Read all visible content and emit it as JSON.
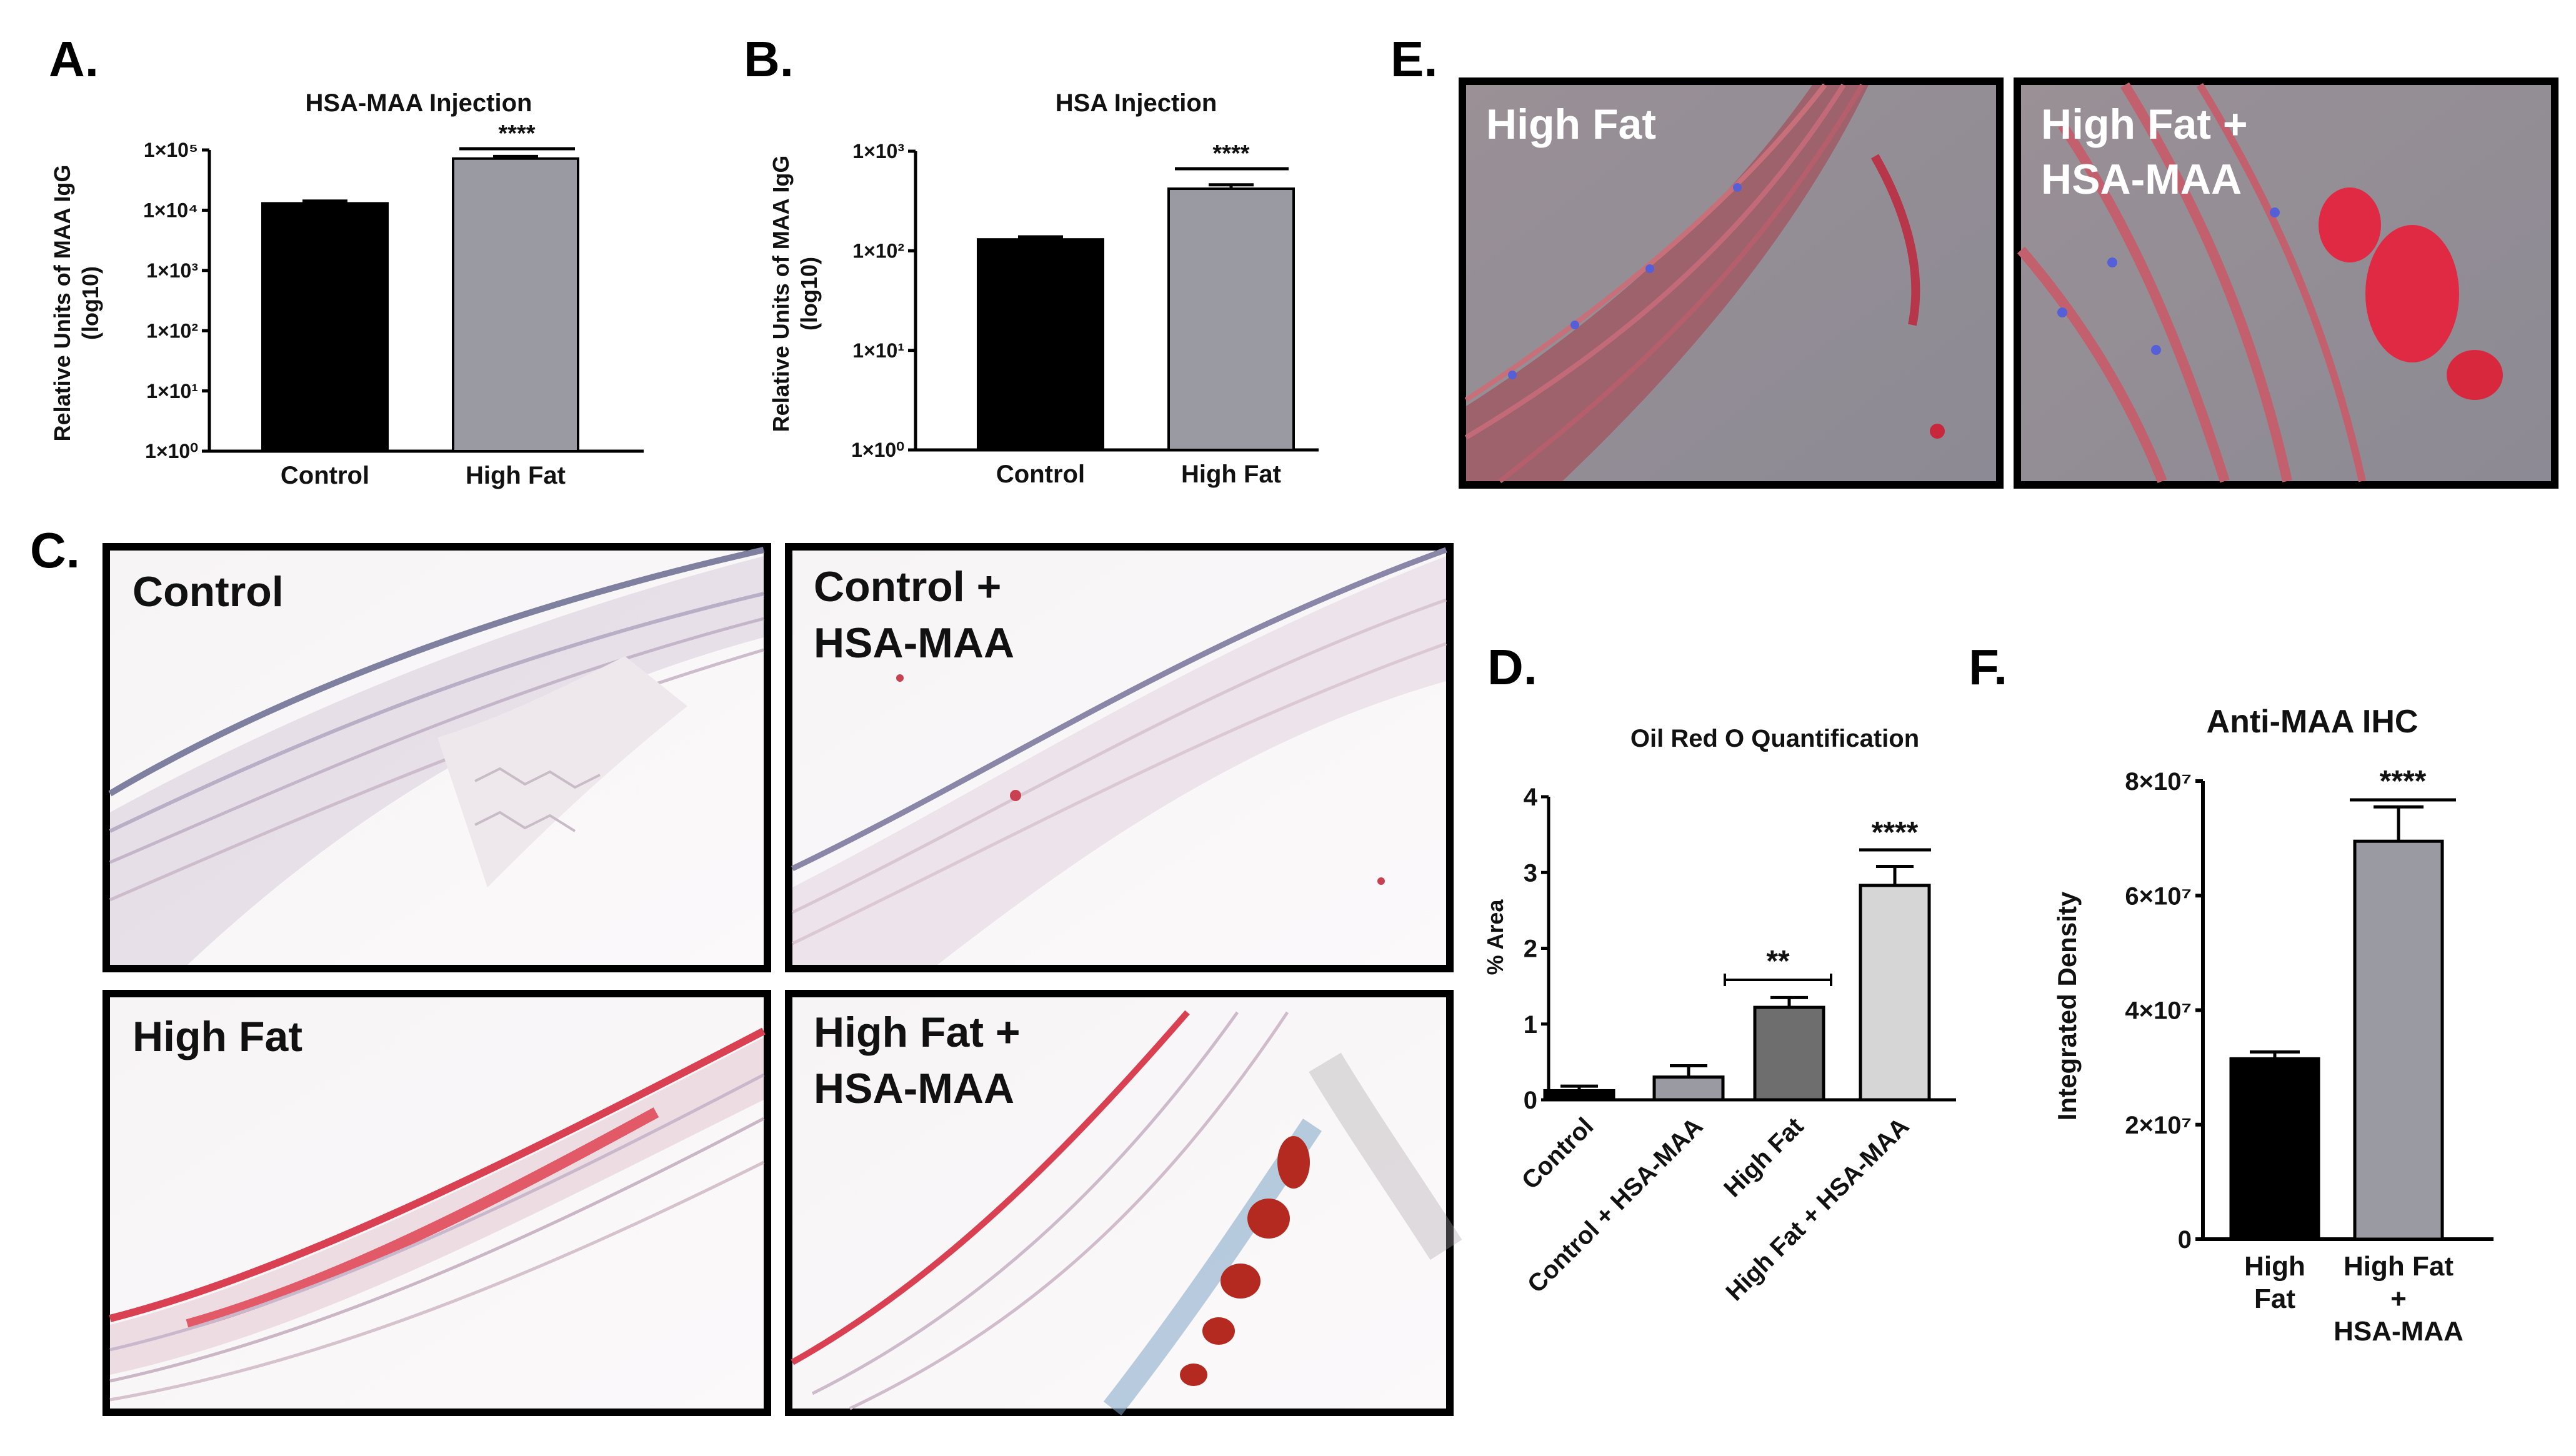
{
  "panel_labels": {
    "a": "A.",
    "b": "B.",
    "c": "C.",
    "d": "D.",
    "e": "E.",
    "f": "F."
  },
  "image_labels": {
    "c1": "Control",
    "c2_l1": "Control +",
    "c2_l2": "HSA-MAA",
    "c3": "High Fat",
    "c4_l1": "High Fat +",
    "c4_l2": "HSA-MAA",
    "e1": "High Fat",
    "e2_l1": "High Fat +",
    "e2_l2": "HSA-MAA"
  },
  "colors": {
    "black_bar": "#000000",
    "gray_bar": "#9a9aa2",
    "dark_gray": "#6e6e6e",
    "light_gray": "#d6d6d6",
    "stain_red": "#d42a3a",
    "nuclei_blue": "#5560d8"
  },
  "chart_data": [
    {
      "id": "A",
      "type": "bar",
      "title": "HSA-MAA Injection",
      "ylabel_l1": "Relative Units of MAA IgG",
      "ylabel_l2": "(log10)",
      "scale": "log10",
      "ylim": [
        1,
        100000
      ],
      "yticks": [
        "1×10⁰",
        "1×10¹",
        "1×10²",
        "1×10³",
        "1×10⁴",
        "1×10⁵"
      ],
      "categories": [
        "Control",
        "High Fat"
      ],
      "values": [
        13000,
        72000
      ],
      "errors": [
        1200,
        6000
      ],
      "significance": "****"
    },
    {
      "id": "B",
      "type": "bar",
      "title": "HSA Injection",
      "ylabel_l1": "Relative Units of MAA IgG",
      "ylabel_l2": "(log10)",
      "scale": "log10",
      "ylim": [
        1,
        1000
      ],
      "yticks": [
        "1×10⁰",
        "1×10¹",
        "1×10²",
        "1×10³"
      ],
      "categories": [
        "Control",
        "High Fat"
      ],
      "values": [
        130,
        420
      ],
      "errors": [
        8,
        40
      ],
      "significance": "****"
    },
    {
      "id": "D",
      "type": "bar",
      "title": "Oil Red O Quantification",
      "ylabel": "% Area",
      "ylim": [
        0,
        4
      ],
      "yticks": [
        "0",
        "1",
        "2",
        "3",
        "4"
      ],
      "categories": [
        "Control",
        "Control + HSA-MAA",
        "High Fat",
        "High Fat + HSA-MAA"
      ],
      "values": [
        0.12,
        0.3,
        1.22,
        2.83
      ],
      "errors": [
        0.06,
        0.15,
        0.13,
        0.25
      ],
      "significance": [
        {
          "label": "**",
          "between": [
            1,
            2
          ]
        },
        {
          "label": "****",
          "over": 3
        }
      ]
    },
    {
      "id": "F",
      "type": "bar",
      "title": "Anti-MAA IHC",
      "ylabel": "Integrated Density",
      "ylim": [
        0,
        80000000
      ],
      "yticks": [
        "0",
        "2×10⁷",
        "4×10⁷",
        "6×10⁷",
        "8×10⁷"
      ],
      "categories": [
        [
          "High",
          "Fat"
        ],
        [
          "High Fat",
          "+",
          "HSA-MAA"
        ]
      ],
      "values": [
        31500000,
        69500000
      ],
      "errors": [
        1200000,
        6000000
      ],
      "significance": "****"
    }
  ]
}
